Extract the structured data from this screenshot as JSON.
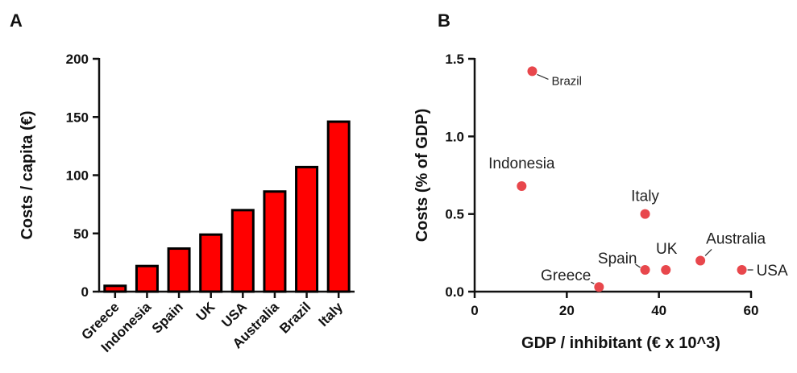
{
  "panels": {
    "left_letter": "A",
    "right_letter": "B"
  },
  "chart_data": [
    {
      "type": "bar",
      "categories": [
        "Greece",
        "Indonesia",
        "Spain",
        "UK",
        "USA",
        "Australia",
        "Brazil",
        "Italy"
      ],
      "values": [
        5,
        22,
        37,
        49,
        70,
        86,
        107,
        146
      ],
      "ylabel": "Costs / capita (€)",
      "xlabel": "",
      "ylim": [
        0,
        200
      ],
      "yticks": [
        0,
        50,
        100,
        150,
        200
      ],
      "bar_color": "#ff0000",
      "bar_edge_color": "#000000",
      "grid": false
    },
    {
      "type": "scatter",
      "xlabel": "GDP / inhibitant (€ x 10^3)",
      "ylabel": "Costs (% of GDP)",
      "xlim": [
        0,
        60
      ],
      "ylim": [
        0,
        1.5
      ],
      "xticks": [
        0,
        20,
        40,
        60
      ],
      "yticks": [
        "0.0",
        "0.5",
        "1.0",
        "1.5"
      ],
      "point_color": "#e8474c",
      "grid": false,
      "points": [
        {
          "label": "Brazil",
          "x": 12.5,
          "y": 1.42
        },
        {
          "label": "Indonesia",
          "x": 10.2,
          "y": 0.68
        },
        {
          "label": "Italy",
          "x": 37.0,
          "y": 0.5
        },
        {
          "label": "Australia",
          "x": 49.0,
          "y": 0.2
        },
        {
          "label": "UK",
          "x": 41.5,
          "y": 0.14
        },
        {
          "label": "Spain",
          "x": 37.0,
          "y": 0.14
        },
        {
          "label": "USA",
          "x": 58.0,
          "y": 0.14
        },
        {
          "label": "Greece",
          "x": 27.0,
          "y": 0.03
        }
      ]
    }
  ]
}
